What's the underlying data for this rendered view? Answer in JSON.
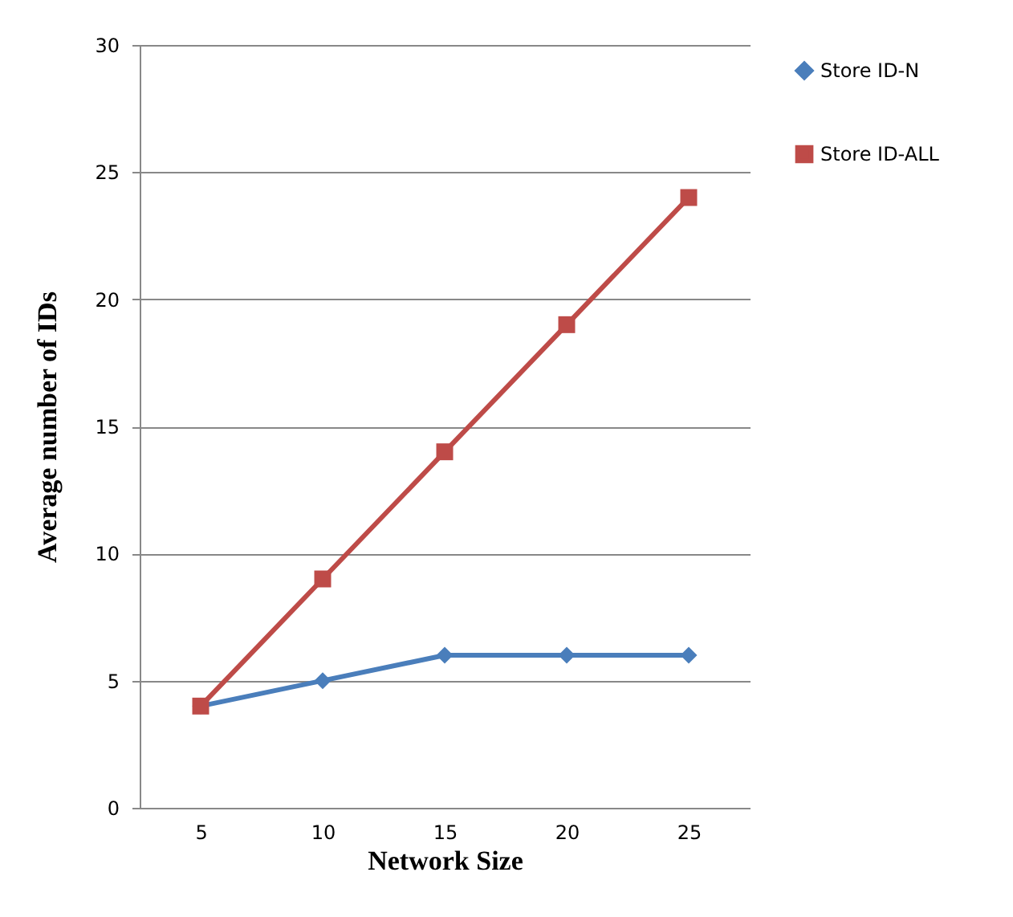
{
  "chart_data": {
    "type": "line",
    "xlabel": "Network Size",
    "ylabel": "Average number of IDs",
    "categories": [
      "5",
      "10",
      "15",
      "20",
      "25"
    ],
    "series": [
      {
        "name": "Store ID-N",
        "color": "#4a7ebb",
        "marker": "diamond",
        "values": [
          4,
          5,
          6,
          6,
          6
        ]
      },
      {
        "name": "Store ID-ALL",
        "color": "#be4b48",
        "marker": "square",
        "values": [
          4,
          9,
          14,
          19,
          24
        ]
      }
    ],
    "ylim": [
      0,
      30
    ],
    "yticks": [
      0,
      5,
      10,
      15,
      20,
      25,
      30
    ],
    "grid": "y",
    "legend": "right",
    "line_style": "solid"
  }
}
